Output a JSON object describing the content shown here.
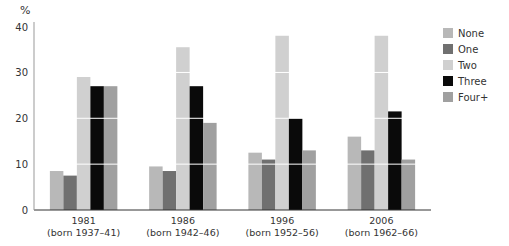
{
  "chart_data": {
    "type": "bar",
    "y_label": "%",
    "categories": [
      "1981\n(born 1937–41)",
      "1986\n(born 1942–46)",
      "1996\n(born 1952–56)",
      "2006\n(born 1962–66)"
    ],
    "series": [
      {
        "name": "None",
        "color": "#b8b8b8",
        "values": [
          8.5,
          9.5,
          12.5,
          16.0
        ]
      },
      {
        "name": "One",
        "color": "#707070",
        "values": [
          7.5,
          8.5,
          11.0,
          13.0
        ]
      },
      {
        "name": "Two",
        "color": "#d0d0d0",
        "values": [
          29.0,
          35.5,
          38.0,
          38.0
        ]
      },
      {
        "name": "Three",
        "color": "#0a0a0a",
        "values": [
          27.0,
          27.0,
          20.0,
          21.5
        ]
      },
      {
        "name": "Four+",
        "color": "#a0a0a0",
        "values": [
          27.0,
          19.0,
          13.0,
          11.0
        ]
      }
    ],
    "ylim": [
      0,
      41
    ],
    "yticks": [
      0,
      10,
      20,
      30,
      40
    ],
    "grid": false,
    "legend": "right"
  }
}
